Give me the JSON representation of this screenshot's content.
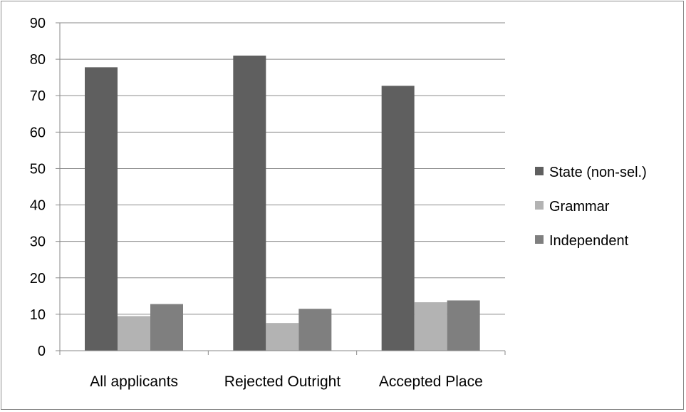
{
  "chart_data": {
    "type": "bar",
    "title": "",
    "xlabel": "",
    "ylabel": "",
    "categories": [
      "All applicants",
      "Rejected Outright",
      "Accepted Place"
    ],
    "series": [
      {
        "name": "State (non-sel.)",
        "values": [
          77.8,
          81.0,
          72.7
        ],
        "color": "#5f5f5f"
      },
      {
        "name": "Grammar",
        "values": [
          9.5,
          7.6,
          13.3
        ],
        "color": "#b3b3b3"
      },
      {
        "name": "Independent",
        "values": [
          12.8,
          11.5,
          13.8
        ],
        "color": "#7f7f7f"
      }
    ],
    "ylim": [
      0,
      90
    ],
    "yticks": [
      0,
      10,
      20,
      30,
      40,
      50,
      60,
      70,
      80,
      90
    ],
    "grid": true,
    "legend_position": "right"
  }
}
